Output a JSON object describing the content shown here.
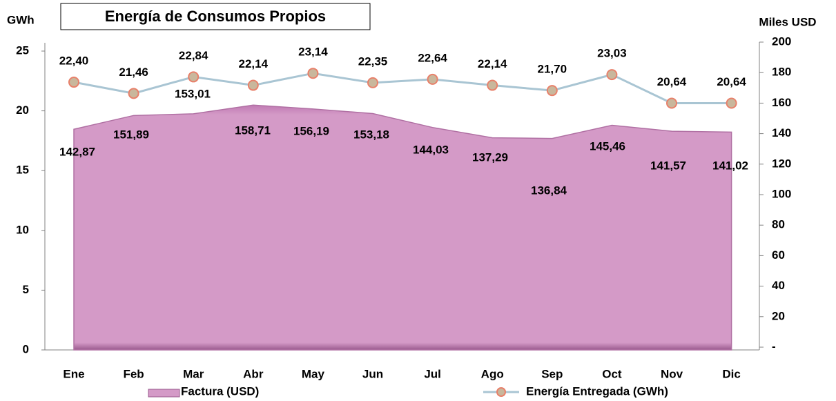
{
  "chart_data": {
    "type": "area_line",
    "title": "Energía de Consumos Propios",
    "y_label": "GWh",
    "y2_label": "Miles USD",
    "categories": [
      "Ene",
      "Feb",
      "Mar",
      "Abr",
      "May",
      "Jun",
      "Jul",
      "Ago",
      "Sep",
      "Oct",
      "Nov",
      "Dic"
    ],
    "series": [
      {
        "name": "Factura (USD)",
        "color": "#d49ac7",
        "axis": "y2",
        "values": [
          142.87,
          151.89,
          153.01,
          158.71,
          156.19,
          153.18,
          144.03,
          137.29,
          136.84,
          145.46,
          141.57,
          141.02
        ],
        "value_labels": [
          "142,87",
          "151,89",
          "153,01",
          "158,71",
          "156,19",
          "153,18",
          "144,03",
          "137,29",
          "136,84",
          "145,46",
          "141,57",
          "141,02"
        ]
      },
      {
        "name": "Energía Entregada (GWh)",
        "color": "#a9c5d3",
        "values": [
          22.4,
          21.46,
          22.84,
          22.14,
          23.14,
          22.35,
          22.64,
          22.14,
          21.7,
          23.03,
          20.64,
          20.64
        ],
        "value_labels": [
          "22,40",
          "21,46",
          "22,84",
          "22,14",
          "23,14",
          "22,35",
          "22,64",
          "22,14",
          "21,70",
          "23,03",
          "20,64",
          "20,64"
        ]
      }
    ],
    "ylim": [
      0,
      25
    ],
    "yticks": [
      0,
      5,
      10,
      15,
      20,
      25
    ],
    "y2lim": [
      0,
      200
    ],
    "y2ticks": [
      {
        "value": 0,
        "label": "-"
      },
      20,
      40,
      60,
      80,
      100,
      120,
      140,
      160,
      180,
      200
    ],
    "legend": "bottom"
  }
}
